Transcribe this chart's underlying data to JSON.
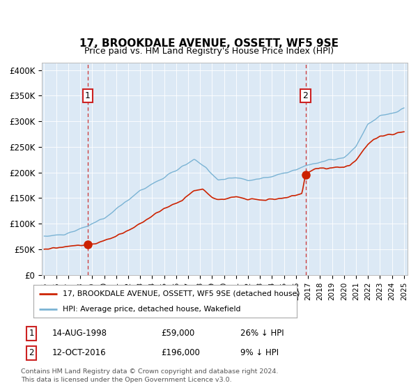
{
  "title": "17, BROOKDALE AVENUE, OSSETT, WF5 9SE",
  "subtitle": "Price paid vs. HM Land Registry's House Price Index (HPI)",
  "ylabel_ticks": [
    "£0",
    "£50K",
    "£100K",
    "£150K",
    "£200K",
    "£250K",
    "£300K",
    "£350K",
    "£400K"
  ],
  "ytick_values": [
    0,
    50000,
    100000,
    150000,
    200000,
    250000,
    300000,
    350000,
    400000
  ],
  "ylim": [
    0,
    415000
  ],
  "xlim_start": 1994.8,
  "xlim_end": 2025.3,
  "bg_color": "#dce9f5",
  "hpi_color": "#7ab3d4",
  "price_color": "#cc2200",
  "sale1_x": 1998.62,
  "sale1_y": 59000,
  "sale1_label": "1",
  "sale1_date": "14-AUG-1998",
  "sale1_price": "£59,000",
  "sale1_hpi": "26% ↓ HPI",
  "sale2_x": 2016.79,
  "sale2_y": 196000,
  "sale2_label": "2",
  "sale2_date": "12-OCT-2016",
  "sale2_price": "£196,000",
  "sale2_hpi": "9% ↓ HPI",
  "legend_label1": "17, BROOKDALE AVENUE, OSSETT, WF5 9SE (detached house)",
  "legend_label2": "HPI: Average price, detached house, Wakefield",
  "footer1": "Contains HM Land Registry data © Crown copyright and database right 2024.",
  "footer2": "This data is licensed under the Open Government Licence v3.0.",
  "xtick_years": [
    1995,
    1996,
    1997,
    1998,
    1999,
    2000,
    2001,
    2002,
    2003,
    2004,
    2005,
    2006,
    2007,
    2008,
    2009,
    2010,
    2011,
    2012,
    2013,
    2014,
    2015,
    2016,
    2017,
    2018,
    2019,
    2020,
    2021,
    2022,
    2023,
    2024,
    2025
  ]
}
